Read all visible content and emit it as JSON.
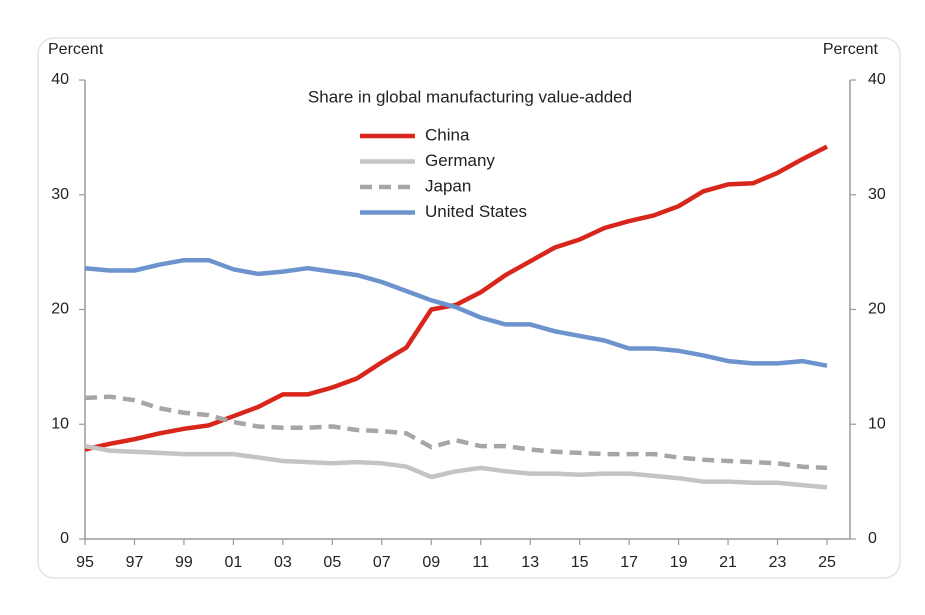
{
  "chart_data": {
    "type": "line",
    "title": "Share in global manufacturing value-added",
    "y_label": "Percent",
    "y2_label": "Percent",
    "categories": [
      "95",
      null,
      "97",
      null,
      "99",
      null,
      "01",
      null,
      "03",
      null,
      "05",
      null,
      "07",
      null,
      "09",
      null,
      "11",
      null,
      "13",
      null,
      "15",
      null,
      "17",
      null,
      "19",
      null,
      "21",
      null,
      "23",
      null,
      "25"
    ],
    "ylim": [
      0,
      40
    ],
    "yticks": [
      0,
      10,
      20,
      30,
      40
    ],
    "y2lim": [
      0,
      40
    ],
    "y2ticks": [
      0,
      10,
      20,
      30,
      40
    ],
    "grid": false,
    "series": [
      {
        "name": "China",
        "color": "#d9261c",
        "linestyle": "solid",
        "values": [
          7.8,
          8.3,
          8.7,
          9.2,
          9.6,
          9.9,
          10.7,
          11.5,
          12.6,
          12.6,
          13.2,
          14.0,
          15.4,
          16.7,
          20.0,
          20.4,
          21.5,
          23.0,
          24.2,
          25.4,
          26.1,
          27.1,
          27.7,
          28.2,
          29.0,
          30.3,
          30.9,
          31.0,
          31.9,
          33.1,
          34.2
        ]
      },
      {
        "name": "Germany",
        "color": "#c4c4c4",
        "linestyle": "solid",
        "values": [
          8.1,
          7.7,
          7.6,
          7.5,
          7.4,
          7.4,
          7.4,
          7.1,
          6.8,
          6.7,
          6.6,
          6.7,
          6.6,
          6.3,
          5.4,
          5.9,
          6.2,
          5.9,
          5.7,
          5.7,
          5.6,
          5.7,
          5.7,
          5.5,
          5.3,
          5.0,
          5.0,
          4.9,
          4.9,
          4.7,
          4.5
        ]
      },
      {
        "name": "Japan",
        "color": "#a6a6a6",
        "linestyle": "dashed",
        "values": [
          12.3,
          12.4,
          12.1,
          11.4,
          11.0,
          10.8,
          10.2,
          9.8,
          9.7,
          9.7,
          9.8,
          9.5,
          9.4,
          9.2,
          8.0,
          8.6,
          8.1,
          8.1,
          7.8,
          7.6,
          7.5,
          7.4,
          7.4,
          7.4,
          7.1,
          6.9,
          6.8,
          6.7,
          6.6,
          6.3,
          6.2
        ]
      },
      {
        "name": "United States",
        "color": "#6d93cf",
        "linestyle": "solid",
        "values": [
          23.6,
          23.4,
          23.4,
          23.9,
          24.3,
          24.3,
          23.5,
          23.1,
          23.3,
          23.6,
          23.3,
          23.0,
          22.4,
          21.6,
          20.8,
          20.2,
          19.3,
          18.7,
          18.7,
          18.1,
          17.7,
          17.3,
          16.6,
          16.6,
          16.4,
          16.0,
          15.5,
          15.3,
          15.3,
          15.5,
          15.1
        ]
      }
    ]
  }
}
